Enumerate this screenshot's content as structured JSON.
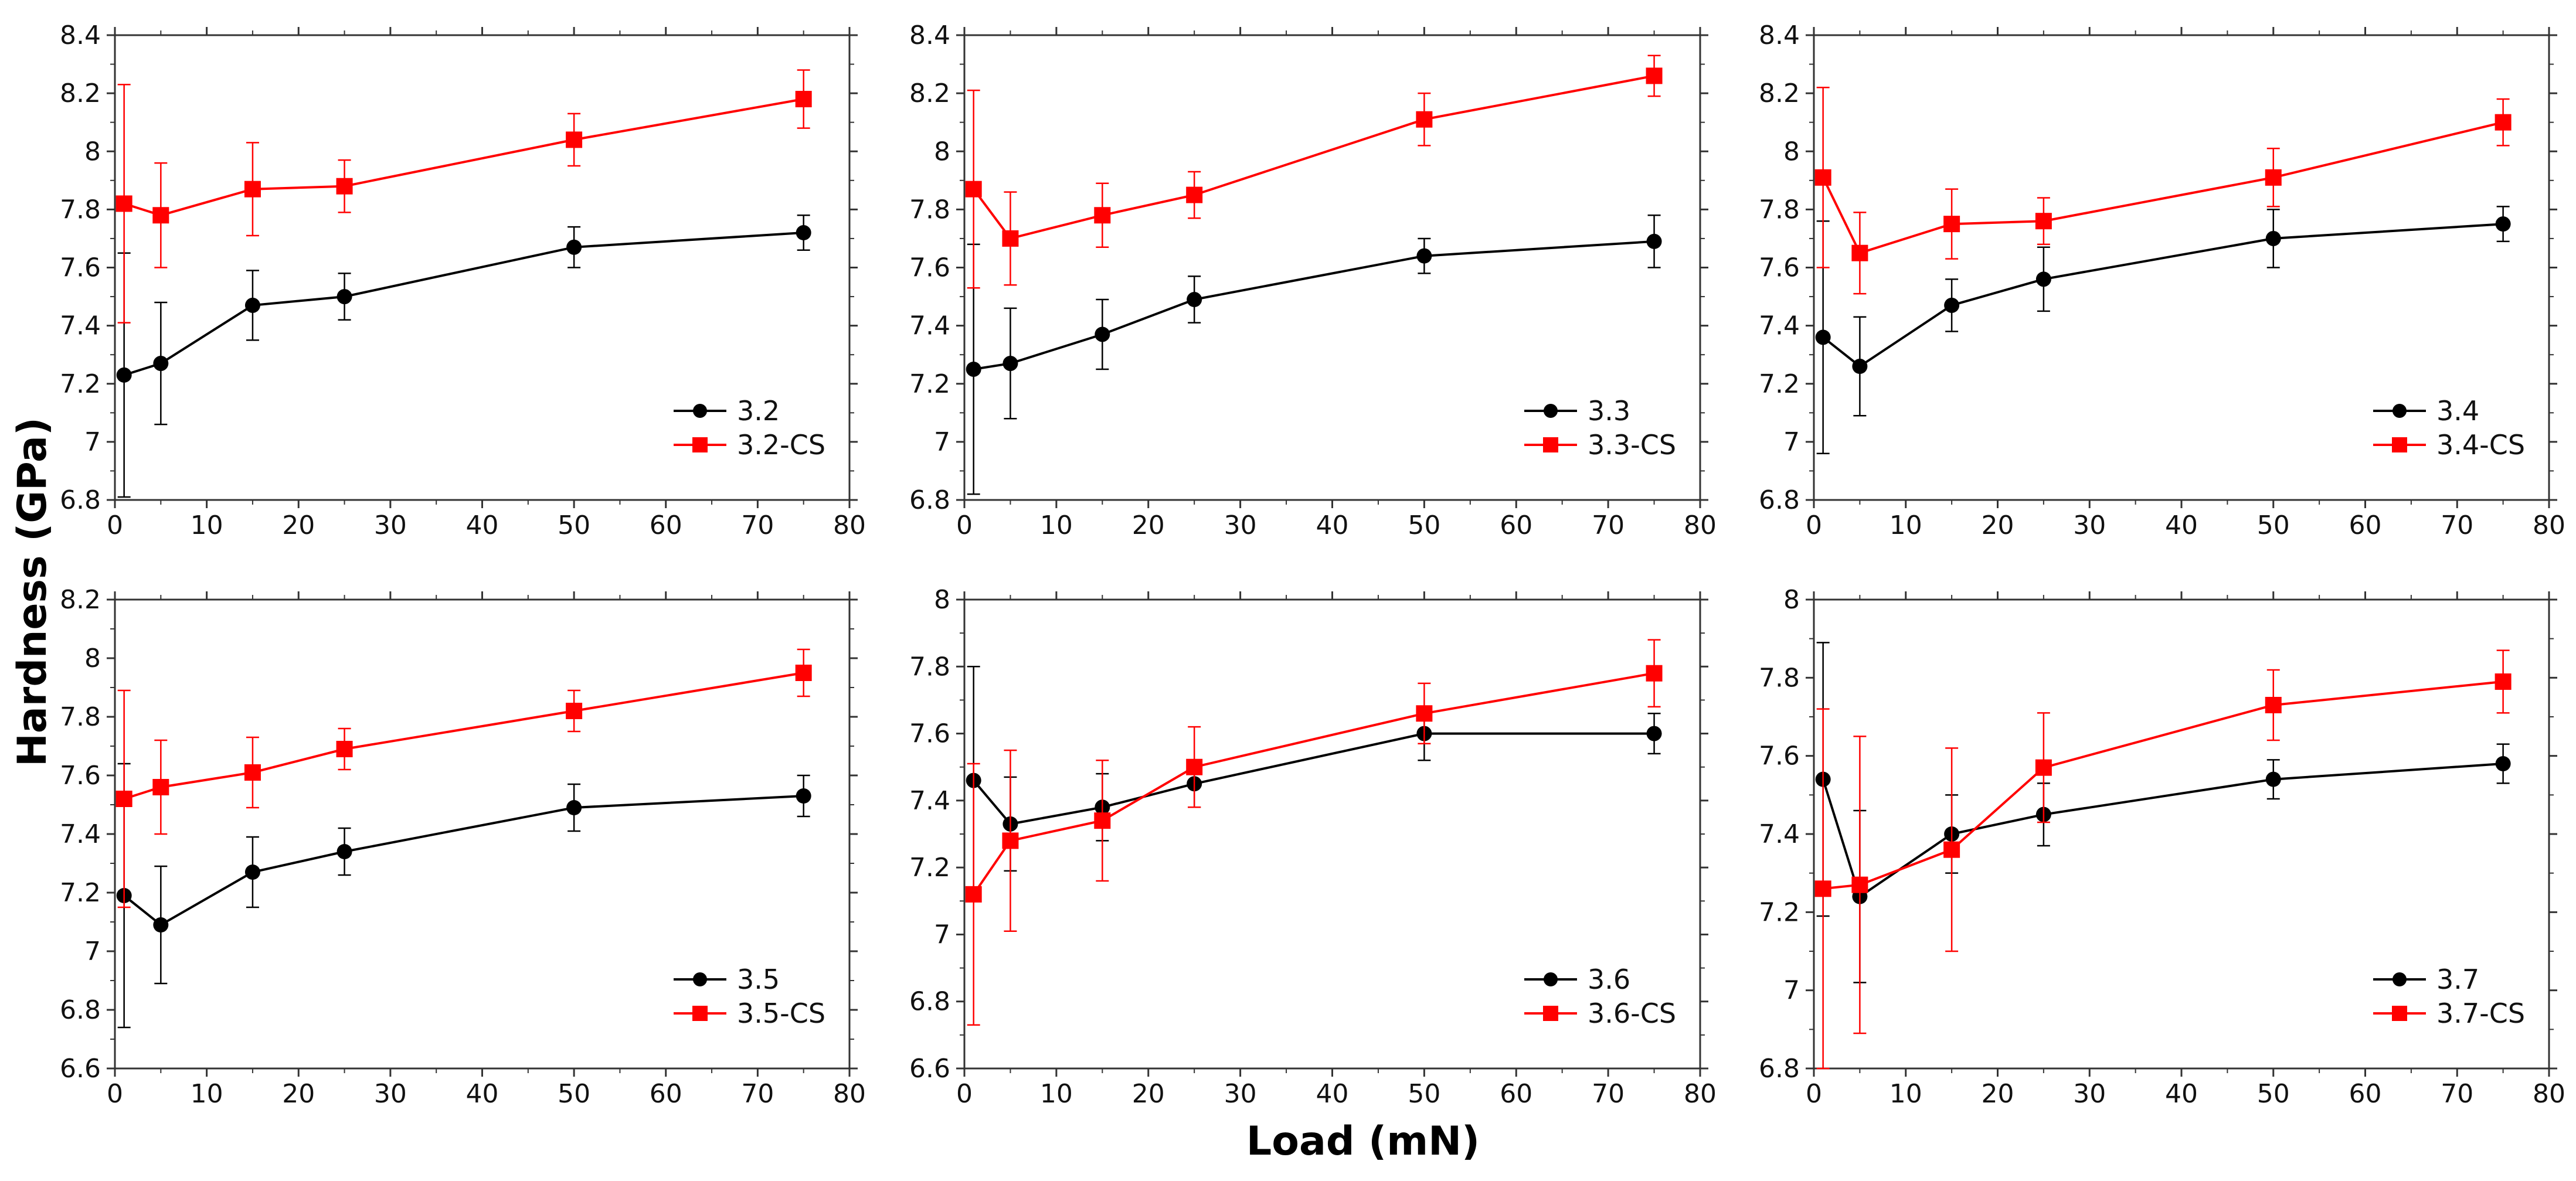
{
  "figure": {
    "xlabel": "Load (mN)",
    "ylabel": "Hardness (GPa)"
  },
  "chart_data": [
    {
      "type": "line",
      "x": [
        1,
        5,
        15,
        25,
        50,
        75
      ],
      "xlim": [
        0,
        80
      ],
      "xticks": [
        0,
        10,
        20,
        30,
        40,
        50,
        60,
        70,
        80
      ],
      "ylim": [
        6.8,
        8.4
      ],
      "yticks": [
        6.8,
        7,
        7.2,
        7.4,
        7.6,
        7.8,
        8,
        8.2,
        8.4
      ],
      "legend_position": "bottom-right",
      "series": [
        {
          "name": "3.2",
          "color": "#000000",
          "marker": "circle",
          "values": [
            7.23,
            7.27,
            7.47,
            7.5,
            7.67,
            7.72
          ],
          "errors": [
            0.42,
            0.21,
            0.12,
            0.08,
            0.07,
            0.06
          ]
        },
        {
          "name": "3.2-CS",
          "color": "#ff0000",
          "marker": "square",
          "values": [
            7.82,
            7.78,
            7.87,
            7.88,
            8.04,
            8.18
          ],
          "errors": [
            0.41,
            0.18,
            0.16,
            0.09,
            0.09,
            0.1
          ]
        }
      ]
    },
    {
      "type": "line",
      "x": [
        1,
        5,
        15,
        25,
        50,
        75
      ],
      "xlim": [
        0,
        80
      ],
      "xticks": [
        0,
        10,
        20,
        30,
        40,
        50,
        60,
        70,
        80
      ],
      "ylim": [
        6.8,
        8.4
      ],
      "yticks": [
        6.8,
        7,
        7.2,
        7.4,
        7.6,
        7.8,
        8,
        8.2,
        8.4
      ],
      "legend_position": "bottom-right",
      "series": [
        {
          "name": "3.3",
          "color": "#000000",
          "marker": "circle",
          "values": [
            7.25,
            7.27,
            7.37,
            7.49,
            7.64,
            7.69
          ],
          "errors": [
            0.43,
            0.19,
            0.12,
            0.08,
            0.06,
            0.09
          ]
        },
        {
          "name": "3.3-CS",
          "color": "#ff0000",
          "marker": "square",
          "values": [
            7.87,
            7.7,
            7.78,
            7.85,
            8.11,
            8.26
          ],
          "errors": [
            0.34,
            0.16,
            0.11,
            0.08,
            0.09,
            0.07
          ]
        }
      ]
    },
    {
      "type": "line",
      "x": [
        1,
        5,
        15,
        25,
        50,
        75
      ],
      "xlim": [
        0,
        80
      ],
      "xticks": [
        0,
        10,
        20,
        30,
        40,
        50,
        60,
        70,
        80
      ],
      "ylim": [
        6.8,
        8.4
      ],
      "yticks": [
        6.8,
        7,
        7.2,
        7.4,
        7.6,
        7.8,
        8,
        8.2,
        8.4
      ],
      "legend_position": "bottom-right",
      "series": [
        {
          "name": "3.4",
          "color": "#000000",
          "marker": "circle",
          "values": [
            7.36,
            7.26,
            7.47,
            7.56,
            7.7,
            7.75
          ],
          "errors": [
            0.4,
            0.17,
            0.09,
            0.11,
            0.1,
            0.06
          ]
        },
        {
          "name": "3.4-CS",
          "color": "#ff0000",
          "marker": "square",
          "values": [
            7.91,
            7.65,
            7.75,
            7.76,
            7.91,
            8.1
          ],
          "errors": [
            0.31,
            0.14,
            0.12,
            0.08,
            0.1,
            0.08
          ]
        }
      ]
    },
    {
      "type": "line",
      "x": [
        1,
        5,
        15,
        25,
        50,
        75
      ],
      "xlim": [
        0,
        80
      ],
      "xticks": [
        0,
        10,
        20,
        30,
        40,
        50,
        60,
        70,
        80
      ],
      "ylim": [
        6.6,
        8.2
      ],
      "yticks": [
        6.6,
        6.8,
        7,
        7.2,
        7.4,
        7.6,
        7.8,
        8,
        8.2
      ],
      "legend_position": "bottom-right",
      "series": [
        {
          "name": "3.5",
          "color": "#000000",
          "marker": "circle",
          "values": [
            7.19,
            7.09,
            7.27,
            7.34,
            7.49,
            7.53
          ],
          "errors": [
            0.45,
            0.2,
            0.12,
            0.08,
            0.08,
            0.07
          ]
        },
        {
          "name": "3.5-CS",
          "color": "#ff0000",
          "marker": "square",
          "values": [
            7.52,
            7.56,
            7.61,
            7.69,
            7.82,
            7.95
          ],
          "errors": [
            0.37,
            0.16,
            0.12,
            0.07,
            0.07,
            0.08
          ]
        }
      ]
    },
    {
      "type": "line",
      "x": [
        1,
        5,
        15,
        25,
        50,
        75
      ],
      "xlim": [
        0,
        80
      ],
      "xticks": [
        0,
        10,
        20,
        30,
        40,
        50,
        60,
        70,
        80
      ],
      "ylim": [
        6.6,
        8
      ],
      "yticks": [
        6.6,
        6.8,
        7,
        7.2,
        7.4,
        7.6,
        7.8,
        8
      ],
      "legend_position": "bottom-right",
      "series": [
        {
          "name": "3.6",
          "color": "#000000",
          "marker": "circle",
          "values": [
            7.46,
            7.33,
            7.38,
            7.45,
            7.6,
            7.6
          ],
          "errors": [
            0.34,
            0.14,
            0.1,
            0.07,
            0.08,
            0.06
          ]
        },
        {
          "name": "3.6-CS",
          "color": "#ff0000",
          "marker": "square",
          "values": [
            7.12,
            7.28,
            7.34,
            7.5,
            7.66,
            7.78
          ],
          "errors": [
            0.39,
            0.27,
            0.18,
            0.12,
            0.09,
            0.1
          ]
        }
      ]
    },
    {
      "type": "line",
      "x": [
        1,
        5,
        15,
        25,
        50,
        75
      ],
      "xlim": [
        0,
        80
      ],
      "xticks": [
        0,
        10,
        20,
        30,
        40,
        50,
        60,
        70,
        80
      ],
      "ylim": [
        6.8,
        8
      ],
      "yticks": [
        6.8,
        7,
        7.2,
        7.4,
        7.6,
        7.8,
        8
      ],
      "legend_position": "bottom-right",
      "series": [
        {
          "name": "3.7",
          "color": "#000000",
          "marker": "circle",
          "values": [
            7.54,
            7.24,
            7.4,
            7.45,
            7.54,
            7.58
          ],
          "errors": [
            0.35,
            0.22,
            0.1,
            0.08,
            0.05,
            0.05
          ]
        },
        {
          "name": "3.7-CS",
          "color": "#ff0000",
          "marker": "square",
          "values": [
            7.26,
            7.27,
            7.36,
            7.57,
            7.73,
            7.79
          ],
          "errors": [
            0.46,
            0.38,
            0.26,
            0.14,
            0.09,
            0.08
          ]
        }
      ]
    }
  ]
}
